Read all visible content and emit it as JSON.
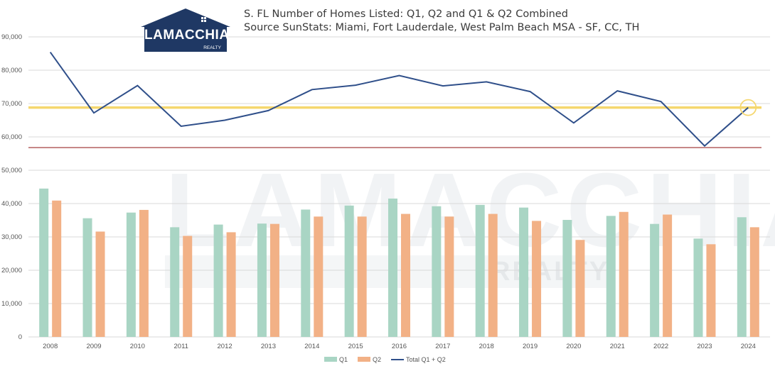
{
  "title_line1": "S. FL Number of Homes Listed: Q1, Q2 and Q1 & Q2 Combined",
  "title_line2": "Source SunStats: Miami, Fort Lauderdale, West Palm Beach MSA - SF, CC, TH",
  "logo": {
    "name": "LAMACCHIA",
    "sub": "REALTY"
  },
  "chart_data": {
    "type": "bar",
    "categories": [
      "2008",
      "2009",
      "2010",
      "2011",
      "2012",
      "2013",
      "2014",
      "2015",
      "2016",
      "2017",
      "2018",
      "2019",
      "2020",
      "2021",
      "2022",
      "2023",
      "2024"
    ],
    "series": [
      {
        "name": "Q1",
        "type": "bar",
        "color": "#a9d5c4",
        "values": [
          44500,
          35600,
          37300,
          32900,
          33700,
          34000,
          38200,
          39400,
          41500,
          39200,
          39600,
          38800,
          35100,
          36300,
          33900,
          29500,
          35900
        ]
      },
      {
        "name": "Q2",
        "type": "bar",
        "color": "#f2b186",
        "values": [
          40900,
          31600,
          38100,
          30300,
          31400,
          33900,
          36100,
          36100,
          36900,
          36100,
          36900,
          34800,
          29100,
          37500,
          36700,
          27800,
          32900
        ]
      },
      {
        "name": "Total Q1 + Q2",
        "type": "line",
        "color": "#2f4f8a",
        "values": [
          85400,
          67200,
          75400,
          63200,
          65000,
          67900,
          74200,
          75500,
          78400,
          75300,
          76500,
          73600,
          64200,
          73800,
          70600,
          57300,
          68800
        ]
      }
    ],
    "reference_lines": [
      {
        "value": 68800,
        "color": "#f5d76e"
      },
      {
        "value": 56800,
        "color": "#9b2b2b"
      }
    ],
    "highlight_point": {
      "category": "2024",
      "color": "#f5d76e"
    },
    "ylim": [
      0,
      90000
    ],
    "yticks": [
      "0",
      "10,000",
      "20,000",
      "30,000",
      "40,000",
      "50,000",
      "60,000",
      "70,000",
      "80,000",
      "90,000"
    ],
    "grid": true,
    "legend": "bottom-center"
  }
}
